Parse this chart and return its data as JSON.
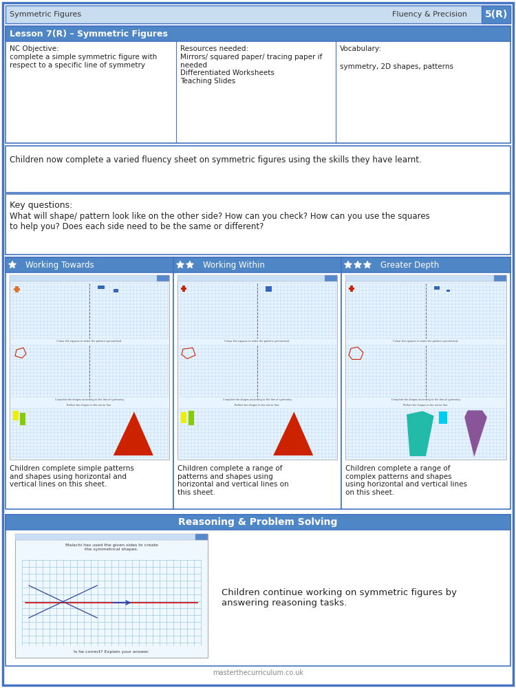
{
  "title_left": "Symmetric Figures",
  "title_right": "Fluency & Precision",
  "title_number": "5(R)",
  "header_light_bg": "#c9ddf0",
  "page_border_color": "#4472c4",
  "lesson_title": "Lesson 7(R) – Symmetric Figures",
  "nc_objective_label": "NC Objective:",
  "nc_objective_text": "complete a simple symmetric figure with\nrespect to a specific line of symmetry",
  "resources_label": "Resources needed:",
  "resources_text": "Mirrors/ squared paper/ tracing paper if\nneeded\nDifferentiated Worksheets\nTeaching Slides",
  "vocabulary_label": "Vocabulary:",
  "vocabulary_text": "symmetry, 2D shapes, patterns",
  "fluency_text": "Children now complete a varied fluency sheet on symmetric figures using the skills they have learnt.",
  "key_questions_label": "Key questions:",
  "key_questions_text": "What will shape/ pattern look like on the other side? How can you check? How can you use the squares\nto help you? Does each side need to be the same or different?",
  "col1_title": "Working Towards",
  "col2_title": "Working Within",
  "col3_title": "Greater Depth",
  "col1_stars": 1,
  "col2_stars": 2,
  "col3_stars": 3,
  "col1_desc": "Children complete simple patterns\nand shapes using horizontal and\nvertical lines on this sheet.",
  "col2_desc": "Children complete a range of\npatterns and shapes using\nhorizontal and vertical lines on\nthis sheet.",
  "col3_desc": "Children complete a range of\ncomplex patterns and shapes\nusing horizontal and vertical lines\non this sheet.",
  "reasoning_title": "Reasoning & Problem Solving",
  "reasoning_text": "Children continue working on symmetric figures by\nanswering reasoning tasks.",
  "footer_text": "masterthecurriculum.co.uk",
  "white": "#ffffff",
  "medium_blue": "#4f86c6",
  "border_blue": "#4472c4",
  "grid_color": "#a8c8e8",
  "thumb_bg": "#e8f4ff"
}
